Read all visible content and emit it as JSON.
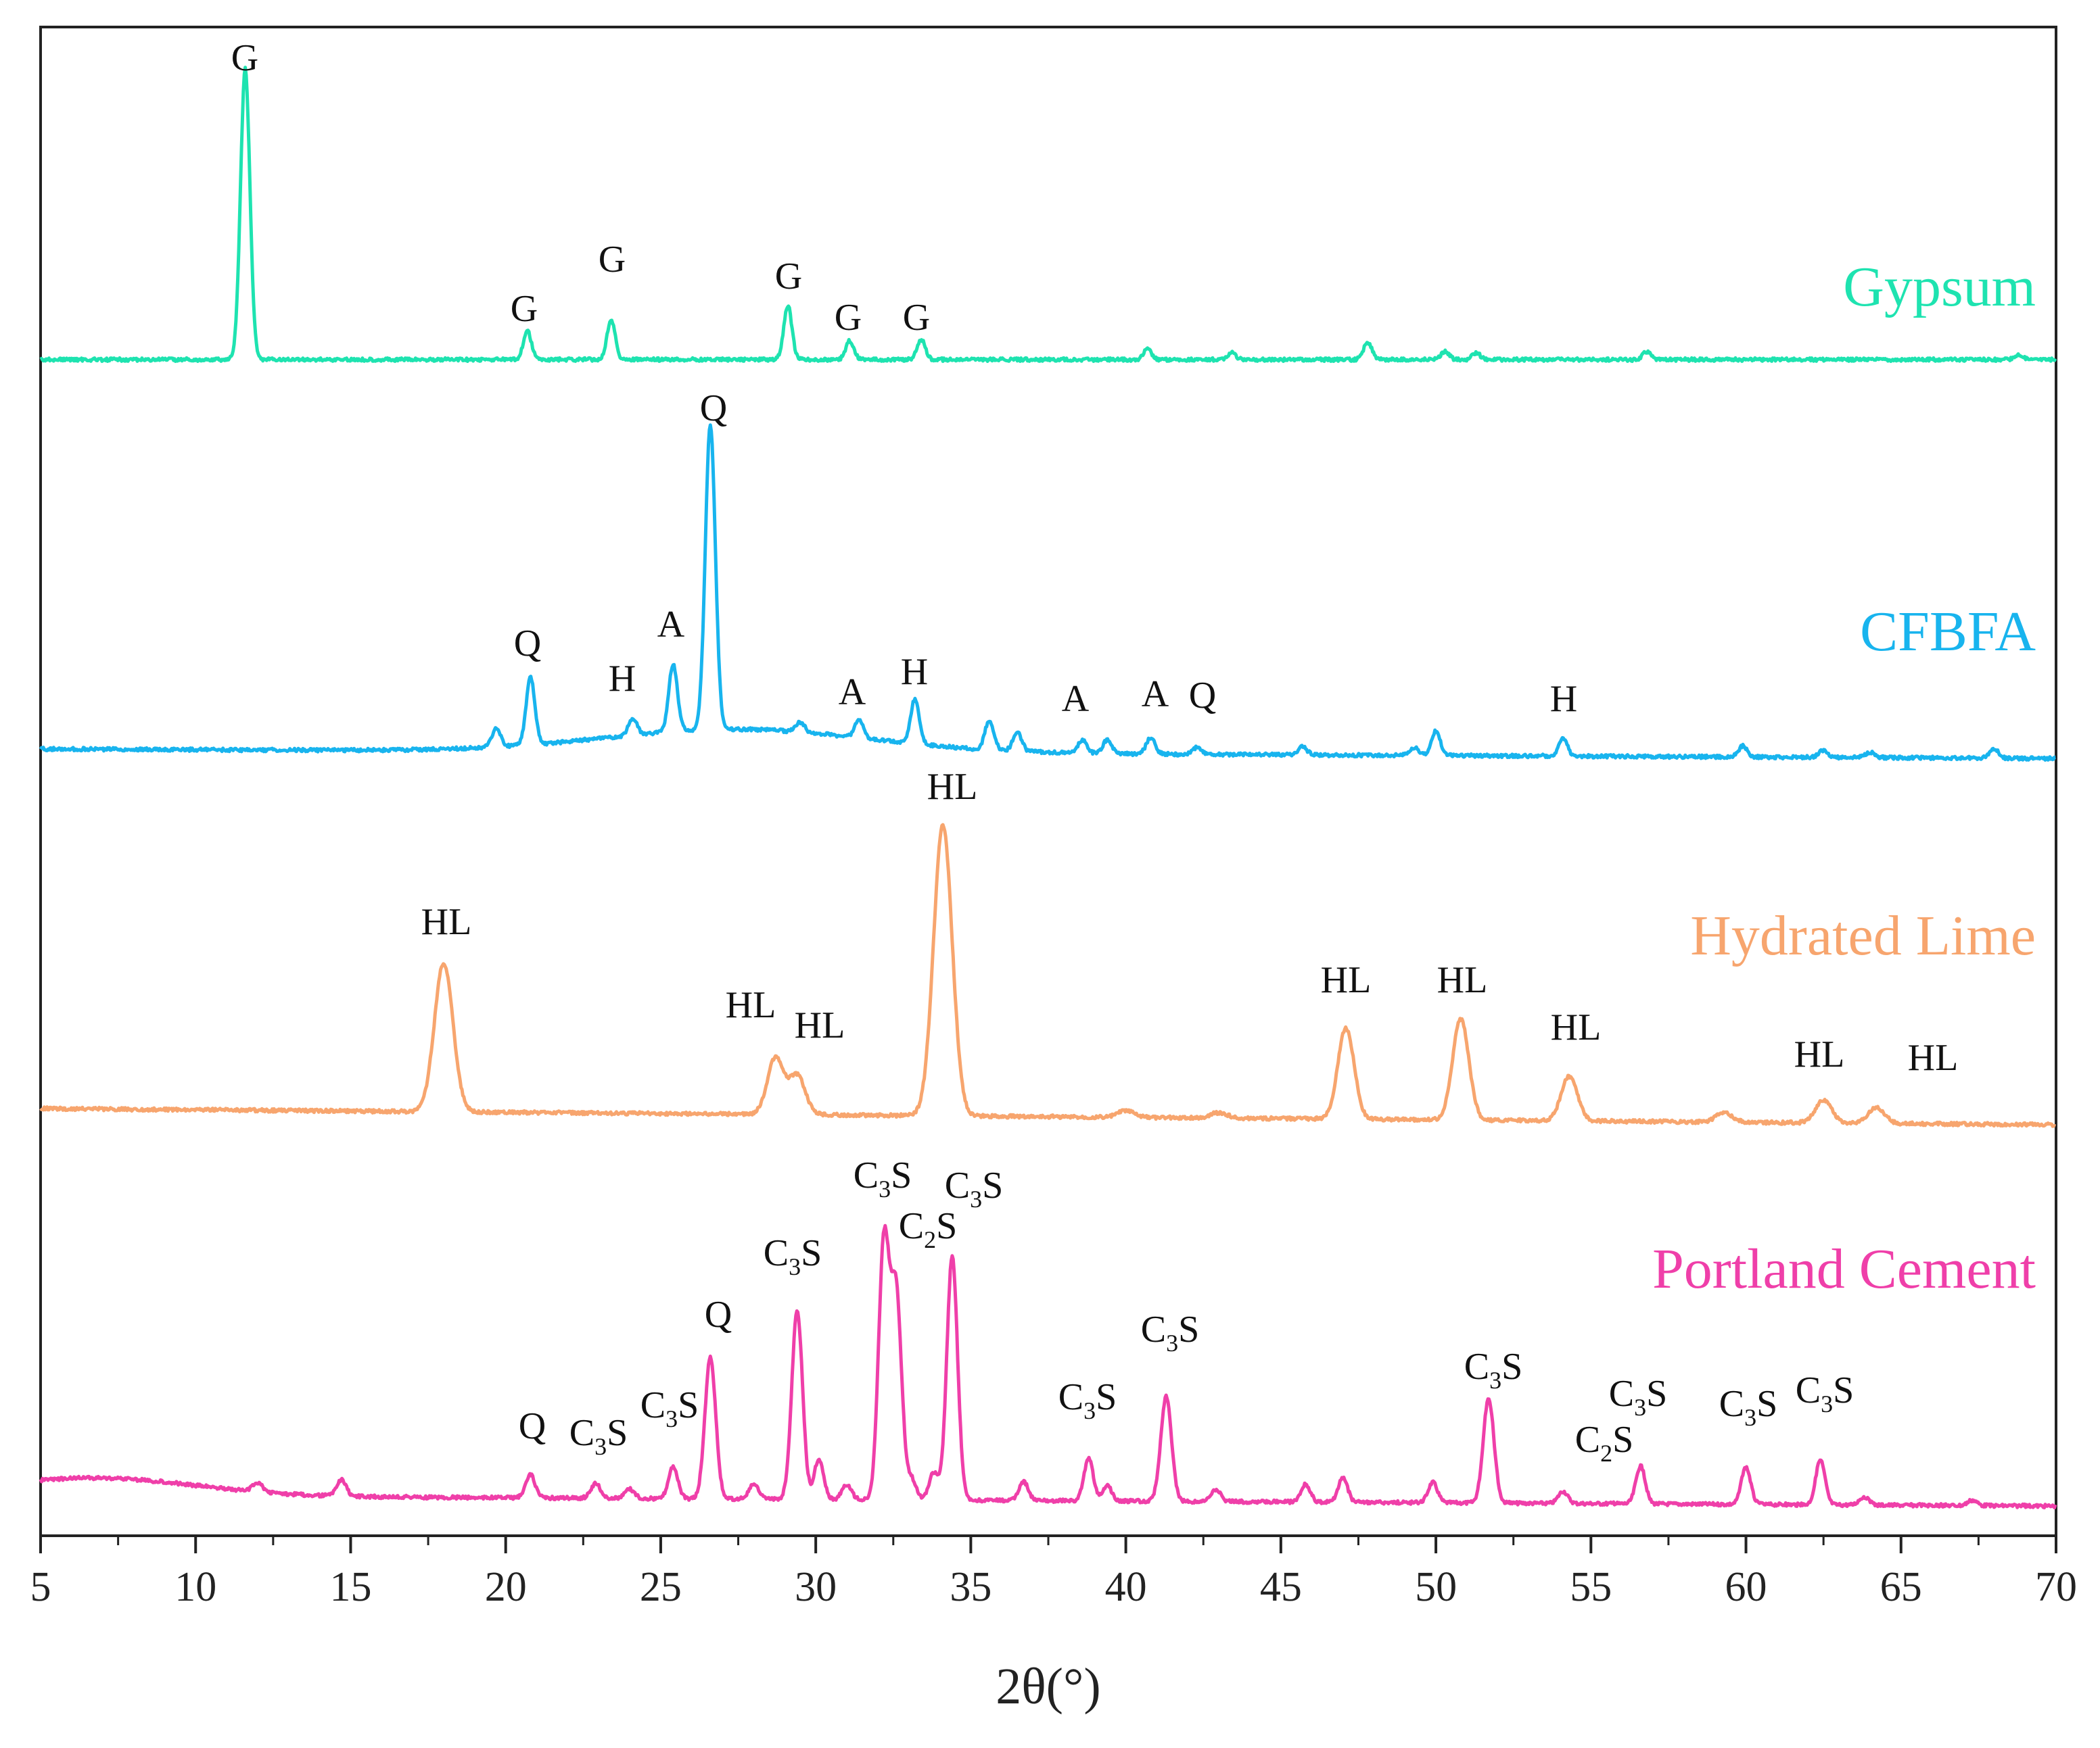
{
  "chart_data": {
    "type": "line",
    "xlabel": "2θ(°)",
    "xlim": [
      5,
      70
    ],
    "x_ticks": [
      "5",
      "10",
      "15",
      "20",
      "25",
      "30",
      "35",
      "40",
      "45",
      "50",
      "55",
      "60",
      "65",
      "70"
    ],
    "y_ticks_shown": false,
    "grid": false,
    "series": [
      {
        "name": "Gypsum",
        "color": "#1ee3b0",
        "peaks": [
          {
            "x": 11.6,
            "label": "G"
          },
          {
            "x": 20.7,
            "label": "G"
          },
          {
            "x": 23.4,
            "label": "G"
          },
          {
            "x": 29.1,
            "label": "G"
          },
          {
            "x": 31.1,
            "label": "G"
          },
          {
            "x": 33.4,
            "label": "G"
          }
        ]
      },
      {
        "name": "CFBFA",
        "color": "#18b4ee",
        "peaks": [
          {
            "x": 20.8,
            "label": "Q"
          },
          {
            "x": 24.1,
            "label": "H"
          },
          {
            "x": 25.4,
            "label": "A"
          },
          {
            "x": 26.6,
            "label": "Q"
          },
          {
            "x": 31.4,
            "label": "A"
          },
          {
            "x": 33.2,
            "label": "H"
          },
          {
            "x": 38.6,
            "label": "A"
          },
          {
            "x": 40.8,
            "label": "A"
          },
          {
            "x": 42.3,
            "label": "Q"
          },
          {
            "x": 54.1,
            "label": "H"
          }
        ]
      },
      {
        "name": "Hydrated Lime",
        "color": "#f7a56e",
        "peaks": [
          {
            "x": 18.0,
            "label": "HL"
          },
          {
            "x": 28.7,
            "label": "HL"
          },
          {
            "x": 29.4,
            "label": "HL"
          },
          {
            "x": 34.1,
            "label": "HL"
          },
          {
            "x": 47.1,
            "label": "HL"
          },
          {
            "x": 50.8,
            "label": "HL"
          },
          {
            "x": 54.3,
            "label": "HL"
          },
          {
            "x": 62.5,
            "label": "HL"
          },
          {
            "x": 64.2,
            "label": "HL"
          }
        ]
      },
      {
        "name": "Portland Cement",
        "color": "#ef3fa9",
        "peaks": [
          {
            "x": 20.8,
            "label": "Q"
          },
          {
            "x": 22.9,
            "label": "C3S"
          },
          {
            "x": 25.4,
            "label": "C3S"
          },
          {
            "x": 26.6,
            "label": "Q"
          },
          {
            "x": 29.4,
            "label": "C3S"
          },
          {
            "x": 32.2,
            "label": "C3S"
          },
          {
            "x": 32.6,
            "label": "C2S"
          },
          {
            "x": 34.4,
            "label": "C3S"
          },
          {
            "x": 38.8,
            "label": "C3S"
          },
          {
            "x": 41.3,
            "label": "C3S"
          },
          {
            "x": 51.7,
            "label": "C3S"
          },
          {
            "x": 54.1,
            "label": "C2S"
          },
          {
            "x": 56.6,
            "label": "C3S"
          },
          {
            "x": 60.0,
            "label": "C3S"
          },
          {
            "x": 62.4,
            "label": "C3S"
          }
        ]
      }
    ]
  }
}
